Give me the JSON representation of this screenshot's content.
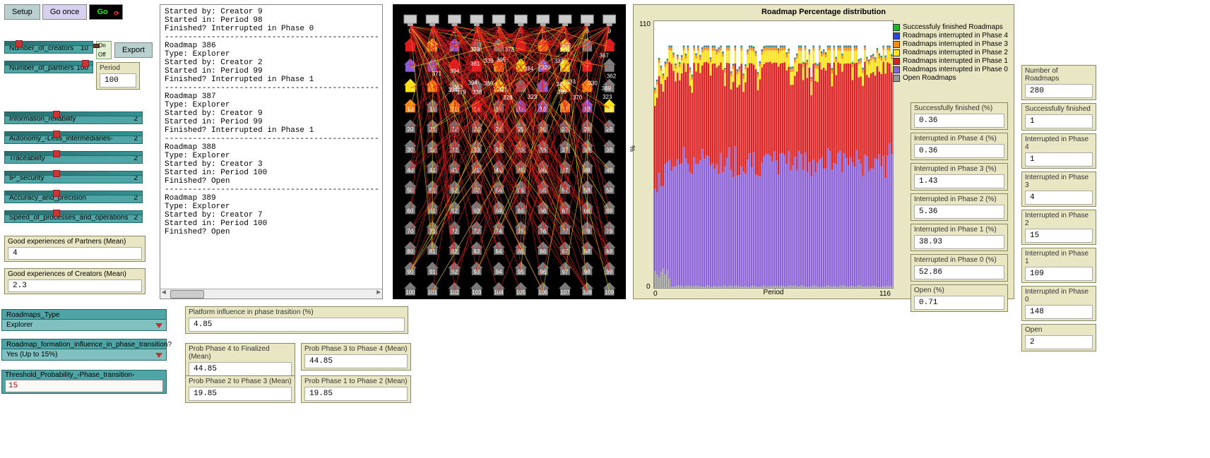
{
  "buttons": {
    "setup": "Setup",
    "go_once": "Go once",
    "go": "Go",
    "export": "Export"
  },
  "switch": {
    "on": "On",
    "off": "Off"
  },
  "sliders": {
    "num_creators": {
      "label": "Number_of_creators",
      "value": "10",
      "thumb_pct": 12
    },
    "num_partners": {
      "label": "Number_of_partners",
      "value": "100",
      "thumb_pct": 88
    },
    "info_rel": {
      "label": "Information_reliability",
      "value": "2",
      "thumb_pct": 35
    },
    "autonomy": {
      "label": "Autonomy_-Less_intermediaries-",
      "value": "2",
      "thumb_pct": 35
    },
    "trace": {
      "label": "Traceability",
      "value": "2",
      "thumb_pct": 35
    },
    "ip": {
      "label": "IP_security",
      "value": "2",
      "thumb_pct": 35
    },
    "accuracy": {
      "label": "Accuracy_and_precision",
      "value": "2",
      "thumb_pct": 35
    },
    "speed": {
      "label": "Speed_of_processes_and_operations",
      "value": "2",
      "thumb_pct": 35
    }
  },
  "period": {
    "label": "Period",
    "value": "100"
  },
  "good_exp_partners": {
    "label": "Good experiences of Partners (Mean)",
    "value": "4"
  },
  "good_exp_creators": {
    "label": "Good experiences of Creators (Mean)",
    "value": "2.3"
  },
  "chooser_type": {
    "label": "Roadmaps_Type",
    "value": "Explorer"
  },
  "chooser_infl": {
    "label": "Roadmap_formation_influence_in_phase_transition?",
    "value": "Yes (Up to 15%)"
  },
  "threshold": {
    "label": "Threshold_Probability_-Phase_transition-",
    "value": "15"
  },
  "console_text": "Started by: Creator 9\nStarted in: Period 98\nFinished? Interrupted in Phase 0\n----------------------------------------------\nRoadmap 386\nType: Explorer\nStarted by: Creator 2\nStarted in: Period 99\nFinished? Interrupted in Phase 1\n----------------------------------------------\nRoadmap 387\nType: Explorer\nStarted by: Creator 9\nStarted in: Period 99\nFinished? Interrupted in Phase 1\n----------------------------------------------\nRoadmap 388\nType: Explorer\nStarted by: Creator 3\nStarted in: Period 100\nFinished? Open\n----------------------------------------------\nRoadmap 389\nType: Explorer\nStarted by: Creator 7\nStarted in: Period 100\nFinished? Open\n",
  "chart": {
    "title": "Roadmap Percentage distribution",
    "ylabel": "%",
    "xlabel": "Period",
    "ymin": "0",
    "ymax": "110",
    "xmin": "0",
    "xmax": "116",
    "legend": [
      {
        "label": "Successfuly finished Roadmaps",
        "color": "#1db81d"
      },
      {
        "label": "Roadmaps interrupted in Phase 4",
        "color": "#2846d8"
      },
      {
        "label": "Roadmaps interrupted in Phase 3",
        "color": "#ff8a1a"
      },
      {
        "label": "Roadmaps interrupted in Phase 2",
        "color": "#ffe31a"
      },
      {
        "label": "Roadmaps interrupted in Phase 1",
        "color": "#e02020"
      },
      {
        "label": "Roadmaps interrupted in Phase 0",
        "color": "#8a60d8"
      },
      {
        "label": "Open Roadmaps",
        "color": "#999999"
      }
    ],
    "stats": {
      "s_fin": {
        "label": "Successfully finished (%)",
        "value": "0.36"
      },
      "s_i4": {
        "label": "Interrupted in Phase 4 (%)",
        "value": "0.36"
      },
      "s_i3": {
        "label": "Interrupted in Phase 3 (%)",
        "value": "1.43"
      },
      "s_i2": {
        "label": "Interrupted in Phase 2 (%)",
        "value": "5.36"
      },
      "s_i1": {
        "label": "Interrupted in Phase 1 (%)",
        "value": "38.93"
      },
      "s_i0": {
        "label": "Interrupted in Phase 0 (%)",
        "value": "52.86"
      },
      "s_open": {
        "label": "Open (%)",
        "value": "0.71"
      }
    },
    "band_heights_pct": {
      "green": 0.36,
      "blue": 0.36,
      "orange": 1.43,
      "yellow": 5.36,
      "red": 38.93,
      "purple": 52.86,
      "gray": 0.71
    }
  },
  "counts": {
    "n_roadmaps": {
      "label": "Number of Roadmaps",
      "value": "280"
    },
    "fin": {
      "label": "Successfully finished",
      "value": "1"
    },
    "i4": {
      "label": "Interrupted in Phase 4",
      "value": "1"
    },
    "i3": {
      "label": "Interrupted in Phase 3",
      "value": "4"
    },
    "i2": {
      "label": "Interrupted in Phase 2",
      "value": "15"
    },
    "i1": {
      "label": "Interrupted in Phase 1",
      "value": "109"
    },
    "i0": {
      "label": "Interrupted in Phase 0",
      "value": "148"
    },
    "open": {
      "label": "Open",
      "value": "2"
    }
  },
  "probs": {
    "plat_inf": {
      "label": "Platform influence in phase trasition (%)",
      "value": "4.85"
    },
    "p4f": {
      "label": "Prob Phase 4 to Finalized (Mean)",
      "value": "44.85"
    },
    "p34": {
      "label": "Prob Phase 3 to Phase 4 (Mean)",
      "value": "44.85"
    },
    "p23": {
      "label": "Prob Phase 2 to Phase 3 (Mean)",
      "value": "19.85"
    },
    "p12": {
      "label": "Prob Phase 1 to Phase 2 (Mean)",
      "value": "19.85"
    }
  },
  "world": {
    "partner_rows_start_at": 10
  }
}
